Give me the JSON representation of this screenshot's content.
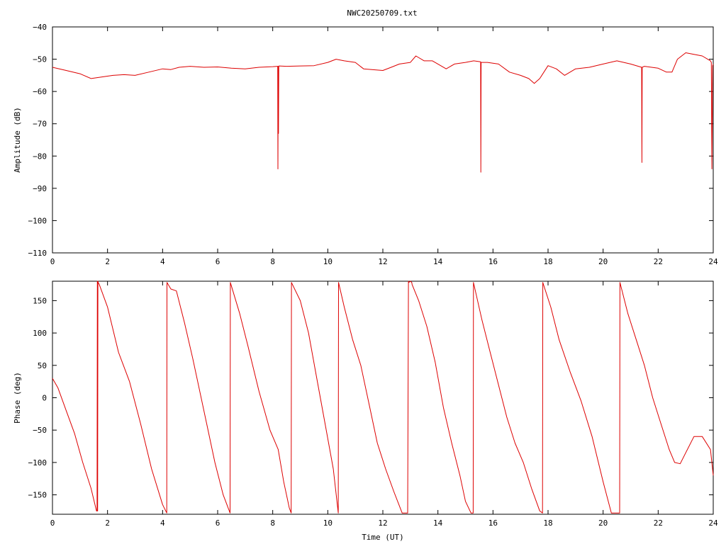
{
  "title": "NWC20250709.txt",
  "colors": {
    "series": "#dd0000",
    "axis": "#000000",
    "background": "#ffffff"
  },
  "chart_data": [
    {
      "type": "line",
      "title": "NWC20250709.txt",
      "xlabel": "",
      "ylabel": "Amplitude (dB)",
      "xlim": [
        0,
        24
      ],
      "ylim": [
        -110,
        -40
      ],
      "xticks": [
        0,
        2,
        4,
        6,
        8,
        10,
        12,
        14,
        16,
        18,
        20,
        22,
        24
      ],
      "yticks": [
        -110,
        -100,
        -90,
        -80,
        -70,
        -60,
        -50,
        -40
      ],
      "xtick_labels": [
        "0",
        "2",
        "4",
        "6",
        "8",
        "10",
        "12",
        "14",
        "16",
        "18",
        "20",
        "22",
        "24"
      ],
      "ytick_labels": [
        "−110",
        "−100",
        "−90",
        "−80",
        "−70",
        "−60",
        "−50",
        "−40"
      ],
      "grid": false,
      "series": [
        {
          "x": [
            0,
            0.5,
            1.0,
            1.4,
            1.8,
            2.2,
            2.6,
            3.0,
            3.5,
            4.0,
            4.3,
            4.6,
            5.0,
            5.5,
            6.0,
            6.5,
            7.0,
            7.5,
            8.0,
            8.18,
            8.19,
            8.2,
            8.21,
            8.22,
            8.23,
            8.5,
            9.0,
            9.5,
            10.0,
            10.3,
            10.6,
            11.0,
            11.3,
            11.6,
            12.0,
            12.3,
            12.6,
            13.0,
            13.2,
            13.5,
            13.8,
            14.0,
            14.3,
            14.6,
            15.0,
            15.3,
            15.55,
            15.56,
            15.57,
            15.8,
            16.2,
            16.6,
            17.0,
            17.3,
            17.5,
            17.7,
            18.0,
            18.3,
            18.6,
            19.0,
            19.5,
            20.0,
            20.5,
            21.0,
            21.4,
            21.41,
            21.42,
            21.5,
            22.0,
            22.3,
            22.5,
            22.7,
            23.0,
            23.3,
            23.6,
            23.9,
            23.93,
            23.95,
            23.98,
            24.0
          ],
          "y": [
            -52.5,
            -53.5,
            -54.5,
            -56,
            -55.5,
            -55,
            -54.8,
            -55,
            -54,
            -53,
            -53.2,
            -52.5,
            -52.2,
            -52.5,
            -52.4,
            -52.8,
            -53,
            -52.5,
            -52.3,
            -52.2,
            -84,
            -52.2,
            -73,
            -52.2,
            -52.1,
            -52.2,
            -52.1,
            -52,
            -51,
            -50,
            -50.5,
            -51,
            -53,
            -53.2,
            -53.5,
            -52.5,
            -51.5,
            -51,
            -49,
            -50.5,
            -50.5,
            -51.5,
            -53,
            -51.5,
            -51,
            -50.5,
            -50.8,
            -85,
            -51,
            -51,
            -51.5,
            -54,
            -55,
            -56,
            -57.5,
            -56,
            -52,
            -53,
            -55,
            -53,
            -52.5,
            -51.5,
            -50.5,
            -51.5,
            -52.5,
            -82,
            -52.5,
            -52.2,
            -52.8,
            -54,
            -54,
            -50,
            -48,
            -48.5,
            -49,
            -50.5,
            -51,
            -84,
            -52,
            -51.5
          ]
        }
      ]
    },
    {
      "type": "line",
      "title": "",
      "xlabel": "Time (UT)",
      "ylabel": "Phase (deg)",
      "xlim": [
        0,
        24
      ],
      "ylim": [
        -180,
        180
      ],
      "xticks": [
        0,
        2,
        4,
        6,
        8,
        10,
        12,
        14,
        16,
        18,
        20,
        22,
        24
      ],
      "yticks": [
        -150,
        -100,
        -50,
        0,
        50,
        100,
        150
      ],
      "xtick_labels": [
        "0",
        "2",
        "4",
        "6",
        "8",
        "10",
        "12",
        "14",
        "16",
        "18",
        "20",
        "22",
        "24"
      ],
      "ytick_labels": [
        "−150",
        "−100",
        "−50",
        "0",
        "50",
        "100",
        "150"
      ],
      "grid": false,
      "series": [
        {
          "x": [
            0,
            0.2,
            0.5,
            0.8,
            1.1,
            1.4,
            1.6,
            1.62,
            1.63,
            1.64,
            1.65,
            1.66,
            1.7,
            2.0,
            2.4,
            2.8,
            3.2,
            3.6,
            4.0,
            4.15,
            4.16,
            4.3,
            4.5,
            4.8,
            5.1,
            5.3,
            5.6,
            5.9,
            6.2,
            6.45,
            6.46,
            6.8,
            7.1,
            7.5,
            7.9,
            8.2,
            8.4,
            8.6,
            8.67,
            8.68,
            9.0,
            9.3,
            9.6,
            9.9,
            10.2,
            10.38,
            10.39,
            10.6,
            10.9,
            11.2,
            11.5,
            11.8,
            12.1,
            12.4,
            12.7,
            12.9,
            12.93,
            12.94,
            13.0,
            13.05,
            13.06,
            13.3,
            13.6,
            13.9,
            14.2,
            14.5,
            14.8,
            15.0,
            15.2,
            15.28,
            15.29,
            15.6,
            15.9,
            16.2,
            16.5,
            16.8,
            17.1,
            17.4,
            17.7,
            17.8,
            17.81,
            18.1,
            18.4,
            18.8,
            19.2,
            19.6,
            20.0,
            20.3,
            20.6,
            20.61,
            20.9,
            21.2,
            21.5,
            21.8,
            22.1,
            22.4,
            22.6,
            22.8,
            23.0,
            23.3,
            23.6,
            23.9,
            24.0
          ],
          "y": [
            30,
            15,
            -20,
            -55,
            -100,
            -140,
            -175,
            -175,
            180,
            -175,
            180,
            178,
            175,
            140,
            70,
            25,
            -40,
            -110,
            -165,
            -178,
            178,
            168,
            165,
            115,
            60,
            20,
            -40,
            -100,
            -150,
            -178,
            178,
            130,
            80,
            10,
            -50,
            -80,
            -130,
            -170,
            -178,
            178,
            150,
            100,
            30,
            -40,
            -110,
            -178,
            178,
            140,
            90,
            50,
            -10,
            -70,
            -110,
            -145,
            -178,
            -178,
            180,
            178,
            180,
            178,
            175,
            150,
            110,
            55,
            -15,
            -70,
            -120,
            -160,
            -178,
            -178,
            178,
            120,
            70,
            20,
            -30,
            -70,
            -100,
            -140,
            -175,
            -178,
            178,
            140,
            90,
            40,
            -5,
            -60,
            -130,
            -178,
            -178,
            178,
            130,
            90,
            50,
            0,
            -40,
            -80,
            -100,
            -102,
            -85,
            -60,
            -60,
            -80,
            -120
          ]
        }
      ]
    }
  ]
}
